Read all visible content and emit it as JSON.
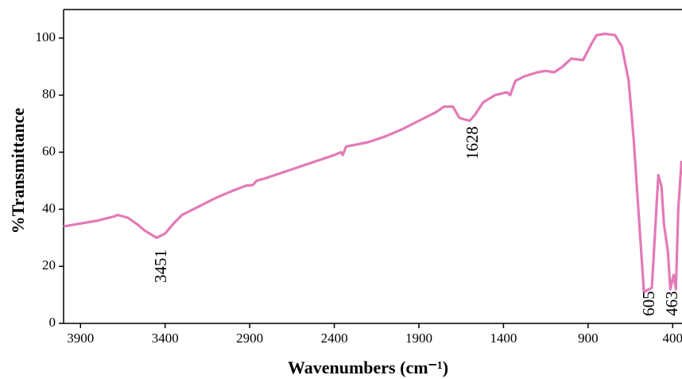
{
  "chart_data": {
    "type": "line",
    "xlabel": "Wavenumbers (cm⁻¹)",
    "ylabel": "%Transmittance",
    "xlim": [
      4000,
      345
    ],
    "xticks": [
      3900,
      3400,
      2900,
      2400,
      1900,
      1400,
      900,
      400
    ],
    "ylim": [
      0,
      110
    ],
    "yticks": [
      0,
      20,
      40,
      60,
      80,
      100
    ],
    "annotations": [
      "3451",
      "1628",
      "605",
      "463"
    ],
    "series": [
      {
        "color": "#e37ab6",
        "x": [
          4000,
          3900,
          3800,
          3700,
          3680,
          3620,
          3560,
          3520,
          3451,
          3400,
          3350,
          3300,
          3200,
          3100,
          3000,
          2920,
          2880,
          2860,
          2800,
          2700,
          2600,
          2500,
          2400,
          2360,
          2350,
          2330,
          2200,
          2100,
          2000,
          1900,
          1800,
          1750,
          1700,
          1660,
          1600,
          1570,
          1520,
          1450,
          1380,
          1360,
          1330,
          1280,
          1200,
          1150,
          1100,
          1050,
          1000,
          930,
          880,
          850,
          800,
          740,
          700,
          660,
          631,
          603,
          570,
          523,
          485,
          466,
          452,
          428,
          414,
          395,
          381,
          367,
          348
        ],
        "values": [
          34,
          35,
          36,
          37.5,
          38,
          37,
          34.5,
          32.5,
          30,
          31.5,
          35,
          38,
          41,
          44,
          46.5,
          48.3,
          48.5,
          50,
          51,
          53,
          55,
          57,
          59,
          60,
          59,
          62,
          63.5,
          65.5,
          68,
          71,
          74,
          76,
          76,
          72,
          71,
          73,
          77.5,
          80,
          81,
          80,
          85,
          86.5,
          88,
          88.5,
          88,
          90,
          92.8,
          92.3,
          98,
          101,
          101.5,
          101,
          97,
          85,
          65,
          40,
          11,
          12.5,
          52,
          48,
          35,
          25,
          12,
          17,
          12,
          40,
          57
        ]
      }
    ]
  }
}
